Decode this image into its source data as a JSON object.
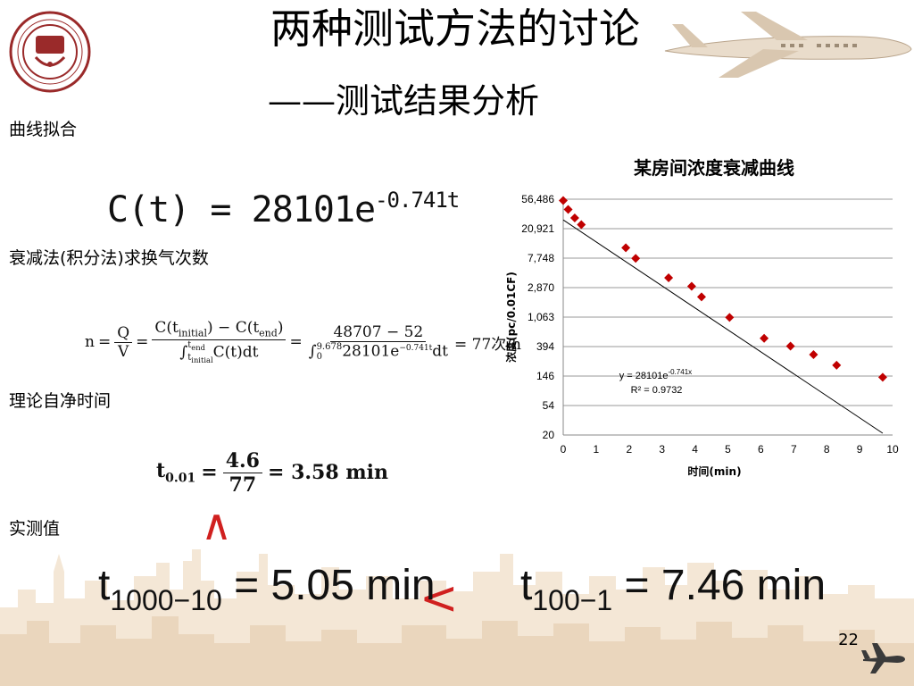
{
  "slide": {
    "title": "两种测试方法的讨论",
    "subtitle": "——测试结果分析",
    "page_number": "22"
  },
  "sections": {
    "curve_fit": "曲线拟合",
    "decay_method": "衰减法(积分法)求换气次数",
    "theory_time": "理论自净时间",
    "measured": "实测值"
  },
  "formulas": {
    "fit": {
      "lhs": "C(t)",
      "eq": "=",
      "coef": "28101e",
      "exp": "-0.741t"
    },
    "ach": {
      "n": "n",
      "q": "Q",
      "v": "V",
      "num1": "C(t",
      "sub_initial": "initial",
      "num1b": ") − C(t",
      "sub_end": "end",
      "num1c": ")",
      "den1": "∫",
      "den1_upper": "t",
      "den1_upper_sub": "end",
      "den1_lower": "t",
      "den1_lower_sub": "initial",
      "den1_body": "C(t)dt",
      "num2": "48707 − 52",
      "den2_upper": "9.678",
      "den2_lower": "0",
      "den2_body": "28101e",
      "den2_exp": "−0.741t",
      "den2_tail": "dt",
      "result": "= 77次/h"
    },
    "self_clean": {
      "lhs": "t",
      "lhs_sub": "0.01",
      "num": "4.6",
      "den": "77",
      "result": "= 3.58 min"
    },
    "measured_1": {
      "t": "t",
      "sub": "1000−10",
      "rest": " = 5.05 min"
    },
    "measured_2": {
      "t": "t",
      "sub": "100−1",
      "rest": " = 7.46 min"
    },
    "ineq_up": "∧",
    "ineq_lt": "<"
  },
  "chart_data": {
    "type": "scatter",
    "title": "某房间浓度衰减曲线",
    "xlabel": "时间(min)",
    "ylabel": "浓度(pc/0.01CF)",
    "xlim": [
      0,
      10
    ],
    "x_ticks": [
      "0",
      "1",
      "2",
      "3",
      "4",
      "5",
      "6",
      "7",
      "8",
      "9",
      "10"
    ],
    "y_scale": "log",
    "y_ticks": [
      "56,486",
      "20,921",
      "7,748",
      "2,870",
      "1,063",
      "394",
      "146",
      "54",
      "20"
    ],
    "y_tick_values": [
      56486,
      20921,
      7748,
      2870,
      1063,
      394,
      146,
      54,
      20
    ],
    "points": [
      {
        "x": 0.0,
        "y": 54000
      },
      {
        "x": 0.15,
        "y": 40000
      },
      {
        "x": 0.35,
        "y": 30000
      },
      {
        "x": 0.55,
        "y": 24000
      },
      {
        "x": 1.9,
        "y": 11000
      },
      {
        "x": 2.2,
        "y": 7700
      },
      {
        "x": 3.2,
        "y": 4000
      },
      {
        "x": 3.9,
        "y": 3000
      },
      {
        "x": 4.2,
        "y": 2100
      },
      {
        "x": 5.05,
        "y": 1050
      },
      {
        "x": 6.1,
        "y": 520
      },
      {
        "x": 6.9,
        "y": 400
      },
      {
        "x": 7.6,
        "y": 300
      },
      {
        "x": 8.3,
        "y": 210
      },
      {
        "x": 9.7,
        "y": 140
      }
    ],
    "trendline": {
      "type": "exponential",
      "a": 28101,
      "b": -0.741,
      "x_range": [
        0,
        9.7
      ]
    },
    "equation_label": "y = 28101e",
    "equation_exp": "-0.741x",
    "r2_label": "R² = 0.9732",
    "marker_color": "#c00000",
    "grid": "horizontal"
  }
}
